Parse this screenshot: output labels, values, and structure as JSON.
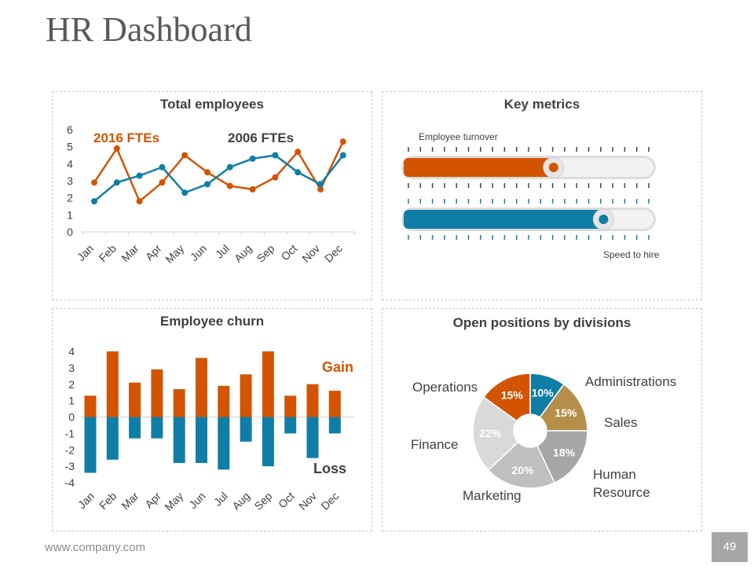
{
  "header": {
    "title": "HR Dashboard"
  },
  "footer": {
    "url": "www.company.com",
    "page_number": "49"
  },
  "colors": {
    "orange": "#d35400",
    "blue": "#0f7ea6",
    "gold": "#b38f4a",
    "gray_dark": "#a6a6a6",
    "gray_mid": "#bfbfbf",
    "gray_light": "#d9d9d9"
  },
  "chart_data": [
    {
      "id": "total_employees",
      "type": "line",
      "title": "Total employees",
      "categories": [
        "Jan",
        "Feb",
        "Mar",
        "Apr",
        "May",
        "Jun",
        "Jul",
        "Aug",
        "Sep",
        "Oct",
        "Nov",
        "Dec"
      ],
      "ylim": [
        0,
        6
      ],
      "yticks": [
        "0",
        "1",
        "2",
        "3",
        "4",
        "5",
        "6"
      ],
      "series": [
        {
          "name": "2016 FTEs",
          "color": "#d35400",
          "values": [
            2.9,
            4.9,
            1.8,
            2.9,
            4.5,
            3.5,
            2.7,
            2.5,
            3.2,
            4.7,
            2.5,
            5.3
          ]
        },
        {
          "name": "2006 FTEs",
          "color": "#0f7ea6",
          "values": [
            1.8,
            2.9,
            3.3,
            3.8,
            2.3,
            2.8,
            3.8,
            4.3,
            4.5,
            3.5,
            2.8,
            4.5
          ]
        }
      ]
    },
    {
      "id": "employee_churn",
      "type": "bar",
      "title": "Employee churn",
      "categories": [
        "Jan",
        "Feb",
        "Mar",
        "Apr",
        "May",
        "Jun",
        "Jul",
        "Aug",
        "Sep",
        "Oct",
        "Nov",
        "Dec"
      ],
      "ylim": [
        -4,
        4
      ],
      "yticks": [
        "-4",
        "-3",
        "-2",
        "-1",
        "0",
        "1",
        "2",
        "3",
        "4"
      ],
      "series": [
        {
          "name": "Gain",
          "color": "#d35400",
          "values": [
            1.3,
            4.0,
            2.1,
            2.9,
            1.7,
            3.6,
            1.9,
            2.6,
            4.0,
            1.3,
            2.0,
            1.6
          ]
        },
        {
          "name": "Loss",
          "color": "#0f7ea6",
          "values": [
            -3.4,
            -2.6,
            -1.3,
            -1.3,
            -2.8,
            -2.8,
            -3.2,
            -1.5,
            -3.0,
            -1.0,
            -2.5,
            -1.0
          ]
        }
      ]
    },
    {
      "id": "open_positions",
      "type": "pie",
      "title": "Open positions by divisions",
      "slices": [
        {
          "label": "Administrations",
          "value": 10,
          "pct_label": "10%",
          "color": "#0f7ea6"
        },
        {
          "label": "Sales",
          "value": 15,
          "pct_label": "15%",
          "color": "#b38f4a"
        },
        {
          "label": "Human Resource",
          "value": 18,
          "pct_label": "18%",
          "color": "#a6a6a6"
        },
        {
          "label": "Marketing",
          "value": 20,
          "pct_label": "20%",
          "color": "#bfbfbf"
        },
        {
          "label": "Finance",
          "value": 22,
          "pct_label": "22%",
          "color": "#d9d9d9"
        },
        {
          "label": "Operations",
          "value": 15,
          "pct_label": "15%",
          "color": "#d35400"
        }
      ]
    }
  ],
  "key_metrics": {
    "title": "Key metrics",
    "employee_turnover": {
      "label": "Employee turnover",
      "fraction": 0.6,
      "color": "#d35400"
    },
    "speed_to_hire": {
      "label": "Speed to hire",
      "fraction": 0.8,
      "color": "#0f7ea6"
    }
  }
}
